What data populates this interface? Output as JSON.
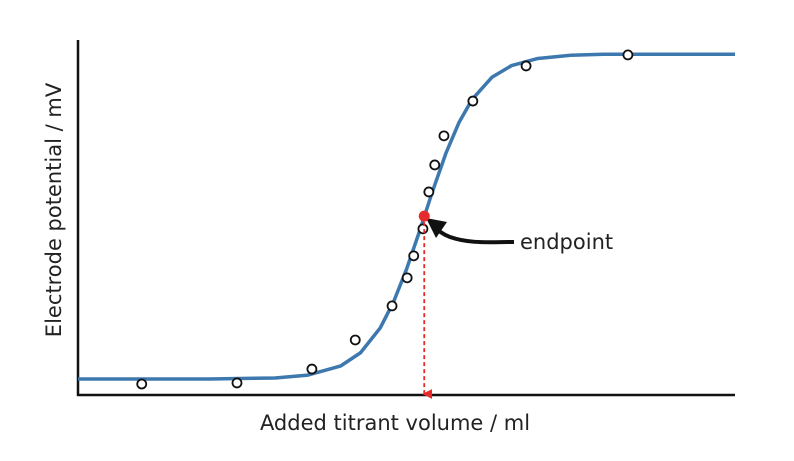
{
  "chart_data": {
    "type": "scatter",
    "x_label": "Added titrant volume / ml",
    "y_label": "Electrode potential / mV",
    "xlim": [
      0,
      100
    ],
    "ylim": [
      0,
      100
    ],
    "series": [
      {
        "type": "line",
        "color": "#3d78ae",
        "x": [
          0,
          20,
          30,
          35,
          40,
          43,
          46,
          48,
          50,
          52,
          54,
          56,
          58,
          60,
          63,
          66,
          70,
          75,
          80,
          100
        ],
        "values": [
          4.5,
          4.5,
          4.8,
          5.6,
          8.2,
          11.9,
          18.9,
          26.1,
          35.4,
          46.2,
          57.6,
          68.1,
          76.8,
          83.3,
          89.5,
          92.8,
          94.8,
          95.7,
          96.0,
          96.0
        ]
      },
      {
        "type": "scatter",
        "color": "#111111",
        "x": [
          9.7,
          24.2,
          35.6,
          42.2,
          47.8,
          50.1,
          51.1,
          52.5,
          53.4,
          54.3,
          55.7,
          60.1,
          68.2,
          83.7
        ],
        "values": [
          3.1,
          3.4,
          7.3,
          15.5,
          25.1,
          33.0,
          39.2,
          46.8,
          57.2,
          64.8,
          73.0,
          82.8,
          92.7,
          95.8
        ]
      }
    ],
    "annotations": [
      {
        "text": "endpoint",
        "x": 52.7,
        "y": 50.4,
        "color": "#e52b2b"
      }
    ]
  }
}
